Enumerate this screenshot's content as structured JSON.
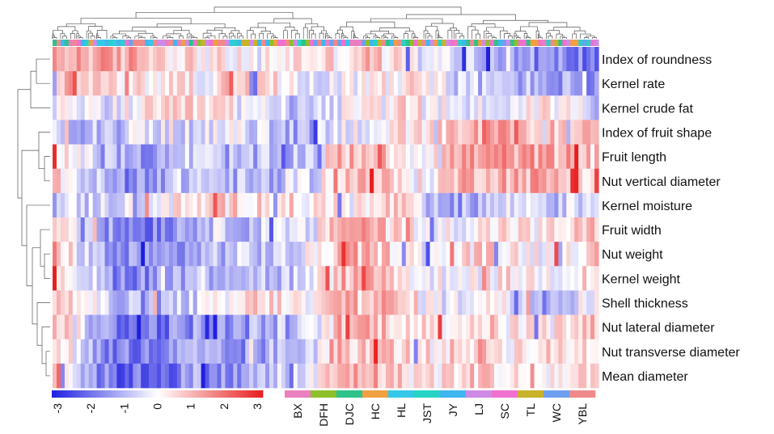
{
  "chart_data": {
    "type": "heatmap",
    "title": "",
    "rows": [
      "Index of roundness",
      "Kernel rate",
      "Kernel crude fat",
      "Index of fruit shape",
      "Fruit length",
      "Nut vertical diameter",
      "Kernel moisture",
      "Fruit width",
      "Nut weight",
      "Kernel weight",
      "Shell thickness",
      "Nut lateral diameter",
      "Nut transverse diameter",
      "Mean diameter"
    ],
    "n_columns": 136,
    "scale": {
      "min": -3,
      "max": 3,
      "ticks": [
        "-3",
        "-2",
        "-1",
        "0",
        "1",
        "2",
        "3"
      ],
      "low_color": "#1f1fe0",
      "mid_color": "#ffffff",
      "high_color": "#e81e1e"
    },
    "groups": [
      {
        "name": "BX",
        "color": "#e97fbf"
      },
      {
        "name": "DFH",
        "color": "#8fbf2a"
      },
      {
        "name": "DJC",
        "color": "#2fc28a"
      },
      {
        "name": "HC",
        "color": "#f0a040"
      },
      {
        "name": "HL",
        "color": "#35c8e8"
      },
      {
        "name": "JST",
        "color": "#27d3c6"
      },
      {
        "name": "JY",
        "color": "#3fb6f0"
      },
      {
        "name": "LJ",
        "color": "#cf8ae6"
      },
      {
        "name": "SC",
        "color": "#f070d0"
      },
      {
        "name": "TL",
        "color": "#c8b22a"
      },
      {
        "name": "WC",
        "color": "#6f9ff0"
      },
      {
        "name": "YBL",
        "color": "#f08a8a"
      }
    ],
    "row_profiles": {
      "Index of roundness": [
        0.9,
        1.3,
        1.0,
        1.2,
        0.6,
        0.4,
        0.1,
        -0.2,
        0.3,
        0.5,
        0.4,
        0.9,
        0.2,
        -0.5,
        -0.3,
        -1.0,
        -1.2,
        -1.5,
        -1.6,
        -1.8
      ],
      "Kernel rate": [
        0.6,
        1.0,
        0.4,
        0.2,
        0.5,
        0.1,
        0.6,
        0.2,
        0.3,
        0.0,
        -0.3,
        0.2,
        0.4,
        0.5,
        -0.6,
        -0.8,
        -0.9,
        -1.1,
        -1.3,
        -1.4
      ],
      "Kernel crude fat": [
        -0.2,
        -0.5,
        -0.3,
        0.1,
        0.2,
        0.5,
        0.3,
        -0.4,
        -0.6,
        -0.4,
        -0.3,
        0.0,
        0.2,
        0.6,
        -0.4,
        -0.3,
        -0.2,
        0.3,
        0.1,
        -0.5
      ],
      "Index of fruit shape": [
        -0.5,
        -0.8,
        -0.5,
        -0.4,
        -0.2,
        -0.6,
        -0.3,
        -0.4,
        -1.1,
        -0.9,
        -0.2,
        0.0,
        0.3,
        0.1,
        0.7,
        1.0,
        1.1,
        0.8,
        0.9,
        0.5
      ],
      "Fruit length": [
        0.9,
        -0.4,
        -1.2,
        -1.3,
        -0.8,
        -0.6,
        -1.0,
        -1.1,
        -1.0,
        -0.6,
        1.0,
        1.1,
        0.5,
        0.2,
        1.1,
        1.3,
        1.3,
        1.1,
        1.0,
        0.6
      ],
      "Nut vertical diameter": [
        0.8,
        -0.5,
        -1.3,
        -1.2,
        -0.9,
        -0.6,
        -0.9,
        -1.1,
        -1.1,
        -0.5,
        0.9,
        1.0,
        0.4,
        0.0,
        0.9,
        1.2,
        1.2,
        1.1,
        0.9,
        0.5
      ],
      "Kernel moisture": [
        -0.7,
        -0.6,
        -0.4,
        -0.2,
        0.1,
        0.3,
        0.5,
        0.7,
        0.5,
        0.2,
        0.2,
        0.1,
        0.8,
        -1.0,
        -1.4,
        -0.9,
        -0.4,
        -0.3,
        -0.6,
        -0.3
      ],
      "Fruit width": [
        1.1,
        -0.2,
        -1.5,
        -1.7,
        -1.4,
        -0.8,
        -0.5,
        -0.8,
        -0.7,
        -0.5,
        1.4,
        1.3,
        0.9,
        -0.4,
        0.1,
        0.2,
        0.5,
        0.0,
        0.5,
        0.7
      ],
      "Nut weight": [
        1.3,
        -0.5,
        -1.5,
        -1.6,
        -1.5,
        -1.1,
        -0.8,
        -0.7,
        -0.8,
        -0.2,
        1.1,
        0.8,
        0.6,
        -0.5,
        0.3,
        0.5,
        0.3,
        0.1,
        0.4,
        0.6
      ],
      "Kernel weight": [
        1.0,
        -0.2,
        -1.4,
        -1.5,
        -1.1,
        -0.7,
        -0.6,
        -0.8,
        -0.9,
        -0.5,
        1.0,
        1.0,
        0.8,
        -0.3,
        0.2,
        0.1,
        0.3,
        0.1,
        0.2,
        0.5
      ],
      "Shell thickness": [
        0.8,
        0.3,
        -0.9,
        -1.2,
        -1.0,
        -0.5,
        -0.2,
        0.6,
        0.4,
        -0.3,
        1.2,
        1.3,
        0.7,
        0.1,
        -0.4,
        0.5,
        -0.3,
        -0.6,
        -0.5,
        0.2
      ],
      "Nut lateral diameter": [
        1.2,
        -0.4,
        -1.6,
        -1.8,
        -1.7,
        -1.3,
        -1.6,
        -1.2,
        -0.9,
        -0.7,
        1.0,
        1.1,
        0.8,
        0.3,
        0.4,
        0.7,
        0.2,
        0.3,
        0.5,
        0.7
      ],
      "Nut transverse diameter": [
        1.1,
        -0.6,
        -1.8,
        -1.9,
        -1.6,
        -1.2,
        -1.7,
        -1.3,
        -1.0,
        -0.5,
        0.9,
        1.0,
        0.6,
        0.3,
        0.5,
        0.9,
        0.3,
        0.4,
        0.4,
        0.6
      ],
      "Mean diameter": [
        1.2,
        -0.8,
        -2.0,
        -2.0,
        -1.8,
        -1.3,
        -1.6,
        -1.1,
        -0.7,
        -0.3,
        1.0,
        1.2,
        0.6,
        0.4,
        0.4,
        0.8,
        0.2,
        0.1,
        0.3,
        0.6
      ]
    }
  }
}
